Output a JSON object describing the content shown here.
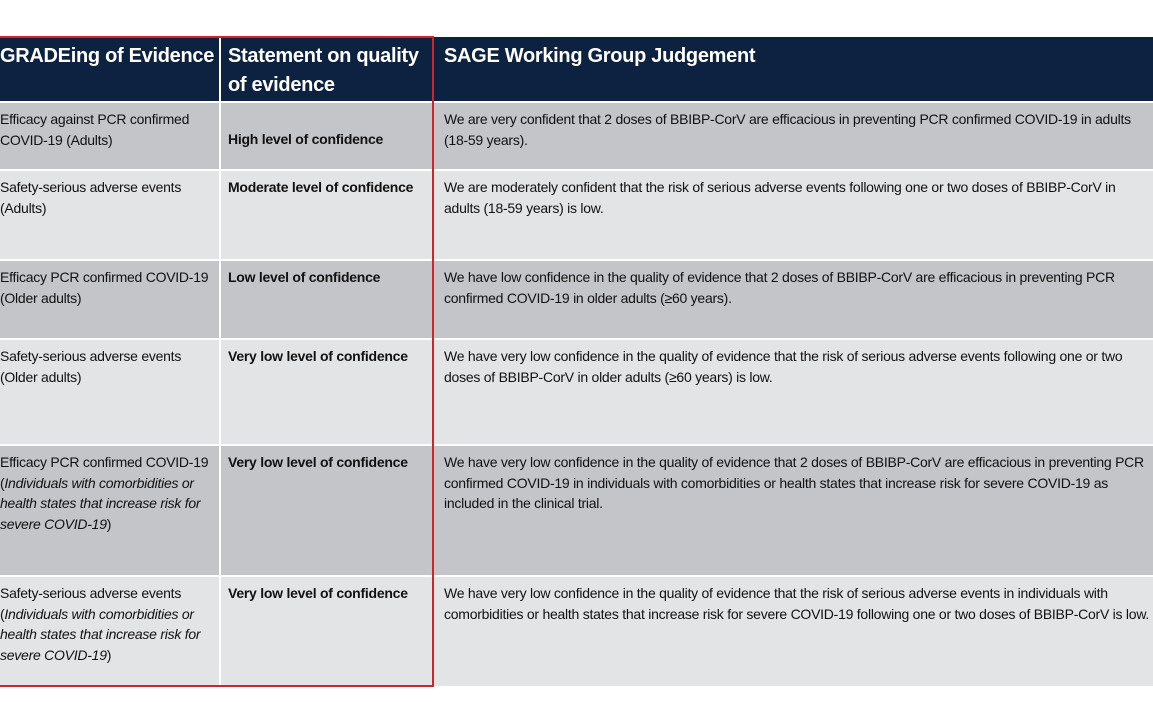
{
  "headers": [
    "GRADEing of Evidence",
    "Statement on quality of evidence",
    "SAGE Working Group Judgement"
  ],
  "rows": [
    {
      "outcome": "Efficacy against PCR confirmed COVID-19 (Adults)",
      "outcome_italic": "",
      "outcome_end": "",
      "statement": "High level of confidence",
      "judgement": "We are very confident that 2 doses of BBIBP-CorV are efficacious in preventing PCR confirmed COVID-19 in adults (18-59 years)."
    },
    {
      "outcome": "Safety-serious adverse events (Adults)",
      "outcome_italic": "",
      "outcome_end": "",
      "statement": "Moderate level of confidence",
      "judgement": "We are moderately confident that the risk of serious adverse events following one or two doses of BBIBP-CorV in adults (18-59 years) is low."
    },
    {
      "outcome": "Efficacy PCR confirmed COVID-19 (Older adults)",
      "outcome_italic": "",
      "outcome_end": "",
      "statement": "Low level of confidence",
      "judgement": "We have low confidence in the quality of evidence that 2 doses of BBIBP-CorV are efficacious in preventing PCR confirmed COVID-19 in older adults (≥60 years)."
    },
    {
      "outcome": "Safety-serious adverse events (Older adults)",
      "outcome_italic": "",
      "outcome_end": "",
      "statement": "Very low level of confidence",
      "judgement": "We have very low confidence in the quality of evidence that the risk of serious adverse events following one or two doses of BBIBP-CorV in older adults (≥60 years) is low."
    },
    {
      "outcome": "Efficacy PCR confirmed COVID-19 (",
      "outcome_italic": "Individuals with comorbidities or health states that increase risk for severe COVID-19",
      "outcome_end": ")",
      "statement": "Very low level of confidence",
      "judgement": "We have very low confidence in the quality of evidence that 2 doses of BBIBP-CorV are efficacious in preventing PCR confirmed COVID-19 in individuals with comorbidities or health states that increase risk for severe COVID-19 as included in the clinical trial."
    },
    {
      "outcome": "Safety-serious adverse events (",
      "outcome_italic": "Individuals with comorbidities or health states that increase risk for severe COVID-19",
      "outcome_end": ")",
      "statement": "Very low level of confidence",
      "judgement": "We have very low confidence in the quality of evidence that the risk of serious adverse events in individuals with comorbidities or health states that increase risk for severe COVID-19 following one or two doses of BBIBP-CorV is low."
    }
  ],
  "colors": {
    "header_bg": "#0d2240",
    "row_dark": "#c4c5c9",
    "row_light": "#e3e4e6",
    "highlight_border": "#d0232a"
  }
}
